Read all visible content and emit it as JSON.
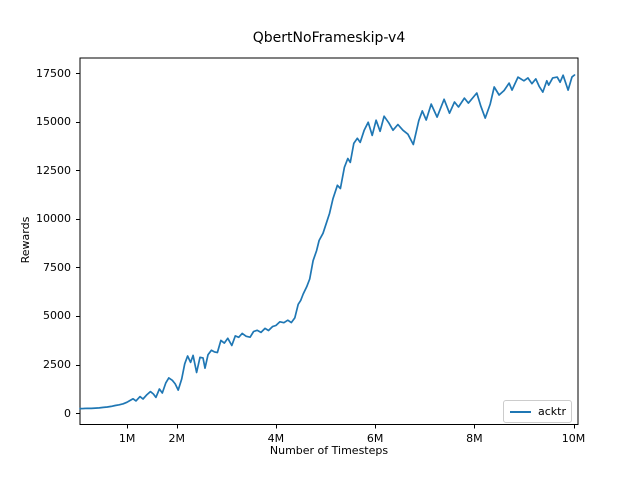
{
  "figure": {
    "background": "#ffffff",
    "text_color": "#000000",
    "spine_color": "#000000"
  },
  "legend": {
    "position": "lower right",
    "border_color": "#cccccc",
    "entries": [
      {
        "label": "acktr",
        "color": "#1f77b4"
      }
    ]
  },
  "chart_data": {
    "type": "line",
    "title": "QbertNoFrameskip-v4",
    "xlabel": "Number of Timesteps",
    "ylabel": "Rewards",
    "x_unit": "millions of timesteps",
    "grid": false,
    "legend_position": "lower right",
    "xlim": [
      0.05,
      10.09
    ],
    "ylim": [
      -587,
      18273
    ],
    "x_ticks": [
      {
        "value": 1,
        "label": "1M"
      },
      {
        "value": 2,
        "label": "2M"
      },
      {
        "value": 4,
        "label": "4M"
      },
      {
        "value": 6,
        "label": "6M"
      },
      {
        "value": 8,
        "label": "8M"
      },
      {
        "value": 10,
        "label": "10M"
      }
    ],
    "y_ticks": [
      {
        "value": 0,
        "label": "0"
      },
      {
        "value": 2500,
        "label": "2500"
      },
      {
        "value": 5000,
        "label": "5000"
      },
      {
        "value": 7500,
        "label": "7500"
      },
      {
        "value": 10000,
        "label": "10000"
      },
      {
        "value": 12500,
        "label": "12500"
      },
      {
        "value": 15000,
        "label": "15000"
      },
      {
        "value": 17500,
        "label": "17500"
      }
    ],
    "series": [
      {
        "name": "acktr",
        "color": "#1f77b4",
        "line_width": 1.7,
        "points": [
          [
            0.05,
            230
          ],
          [
            0.12,
            235
          ],
          [
            0.2,
            248
          ],
          [
            0.28,
            242
          ],
          [
            0.36,
            255
          ],
          [
            0.44,
            268
          ],
          [
            0.52,
            292
          ],
          [
            0.6,
            315
          ],
          [
            0.68,
            345
          ],
          [
            0.76,
            392
          ],
          [
            0.84,
            425
          ],
          [
            0.92,
            480
          ],
          [
            1.0,
            560
          ],
          [
            1.08,
            680
          ],
          [
            1.12,
            735
          ],
          [
            1.18,
            625
          ],
          [
            1.26,
            850
          ],
          [
            1.32,
            725
          ],
          [
            1.4,
            950
          ],
          [
            1.47,
            1105
          ],
          [
            1.53,
            985
          ],
          [
            1.58,
            805
          ],
          [
            1.65,
            1240
          ],
          [
            1.71,
            1035
          ],
          [
            1.78,
            1555
          ],
          [
            1.84,
            1810
          ],
          [
            1.91,
            1685
          ],
          [
            1.97,
            1500
          ],
          [
            2.03,
            1185
          ],
          [
            2.1,
            1755
          ],
          [
            2.16,
            2530
          ],
          [
            2.22,
            2940
          ],
          [
            2.28,
            2610
          ],
          [
            2.33,
            2970
          ],
          [
            2.4,
            2090
          ],
          [
            2.47,
            2870
          ],
          [
            2.53,
            2840
          ],
          [
            2.57,
            2310
          ],
          [
            2.63,
            3000
          ],
          [
            2.7,
            3230
          ],
          [
            2.76,
            3150
          ],
          [
            2.82,
            3120
          ],
          [
            2.89,
            3740
          ],
          [
            2.96,
            3600
          ],
          [
            3.03,
            3850
          ],
          [
            3.11,
            3480
          ],
          [
            3.18,
            3970
          ],
          [
            3.25,
            3900
          ],
          [
            3.32,
            4100
          ],
          [
            3.4,
            3950
          ],
          [
            3.48,
            3905
          ],
          [
            3.55,
            4200
          ],
          [
            3.62,
            4260
          ],
          [
            3.7,
            4155
          ],
          [
            3.78,
            4360
          ],
          [
            3.85,
            4250
          ],
          [
            3.93,
            4450
          ],
          [
            4.0,
            4505
          ],
          [
            4.08,
            4700
          ],
          [
            4.16,
            4650
          ],
          [
            4.24,
            4780
          ],
          [
            4.31,
            4655
          ],
          [
            4.38,
            4900
          ],
          [
            4.45,
            5600
          ],
          [
            4.5,
            5800
          ],
          [
            4.55,
            6130
          ],
          [
            4.62,
            6500
          ],
          [
            4.68,
            6900
          ],
          [
            4.75,
            7840
          ],
          [
            4.82,
            8360
          ],
          [
            4.87,
            8880
          ],
          [
            4.95,
            9250
          ],
          [
            5.02,
            9800
          ],
          [
            5.08,
            10270
          ],
          [
            5.15,
            11040
          ],
          [
            5.24,
            11720
          ],
          [
            5.3,
            11560
          ],
          [
            5.38,
            12650
          ],
          [
            5.45,
            13100
          ],
          [
            5.5,
            12900
          ],
          [
            5.57,
            13880
          ],
          [
            5.64,
            14140
          ],
          [
            5.7,
            13930
          ],
          [
            5.78,
            14560
          ],
          [
            5.86,
            14970
          ],
          [
            5.94,
            14290
          ],
          [
            6.02,
            15070
          ],
          [
            6.1,
            14500
          ],
          [
            6.18,
            15280
          ],
          [
            6.28,
            14920
          ],
          [
            6.36,
            14560
          ],
          [
            6.46,
            14850
          ],
          [
            6.56,
            14560
          ],
          [
            6.66,
            14350
          ],
          [
            6.77,
            13820
          ],
          [
            6.88,
            15050
          ],
          [
            6.95,
            15550
          ],
          [
            7.03,
            15080
          ],
          [
            7.13,
            15900
          ],
          [
            7.25,
            15230
          ],
          [
            7.39,
            16150
          ],
          [
            7.5,
            15430
          ],
          [
            7.6,
            16010
          ],
          [
            7.68,
            15750
          ],
          [
            7.8,
            16210
          ],
          [
            7.88,
            15950
          ],
          [
            8.05,
            16470
          ],
          [
            8.13,
            15800
          ],
          [
            8.22,
            15180
          ],
          [
            8.32,
            15900
          ],
          [
            8.4,
            16780
          ],
          [
            8.5,
            16370
          ],
          [
            8.6,
            16600
          ],
          [
            8.7,
            16980
          ],
          [
            8.76,
            16620
          ],
          [
            8.88,
            17290
          ],
          [
            9.0,
            17100
          ],
          [
            9.08,
            17250
          ],
          [
            9.16,
            16950
          ],
          [
            9.24,
            17200
          ],
          [
            9.31,
            16800
          ],
          [
            9.38,
            16520
          ],
          [
            9.46,
            17100
          ],
          [
            9.5,
            16880
          ],
          [
            9.58,
            17250
          ],
          [
            9.67,
            17290
          ],
          [
            9.73,
            17030
          ],
          [
            9.79,
            17390
          ],
          [
            9.89,
            16620
          ],
          [
            9.97,
            17300
          ],
          [
            10.02,
            17400
          ]
        ]
      }
    ]
  }
}
